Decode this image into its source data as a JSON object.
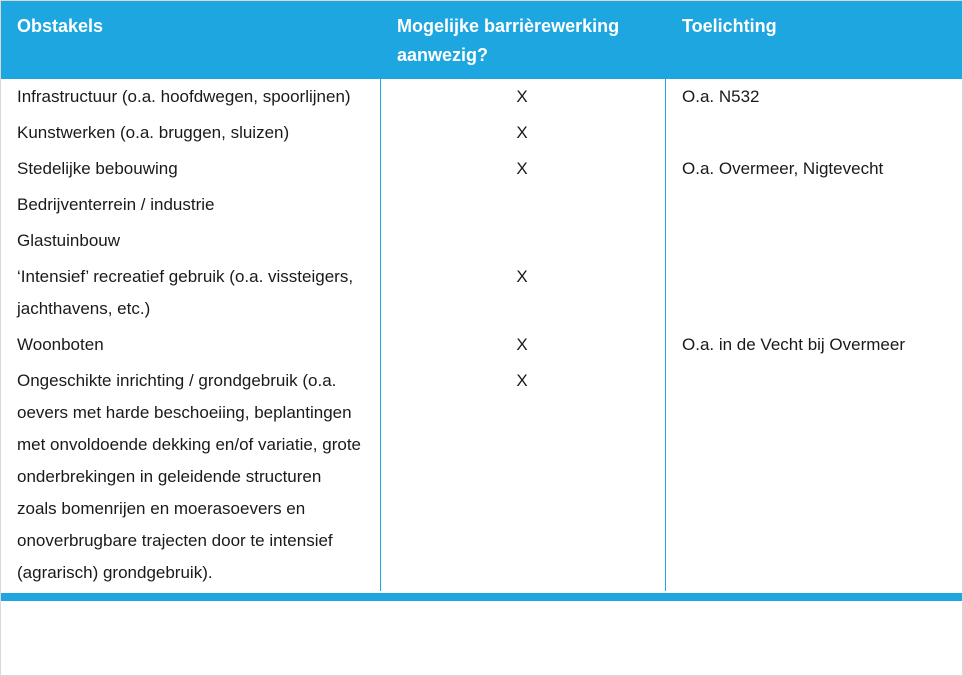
{
  "accent_color": "#1da6e0",
  "table": {
    "headers": [
      "Obstakels",
      "Mogelijke barrièrewerking aanwezig?",
      "Toelichting"
    ],
    "rows": [
      {
        "obstakel": "Infrastructuur (o.a. hoofdwegen, spoorlijnen)",
        "barriere": "X",
        "toelichting": "O.a. N532"
      },
      {
        "obstakel": "Kunstwerken (o.a. bruggen, sluizen)",
        "barriere": "X",
        "toelichting": ""
      },
      {
        "obstakel": "Stedelijke bebouwing",
        "barriere": "X",
        "toelichting": "O.a. Overmeer, Nigtevecht"
      },
      {
        "obstakel": "Bedrijventerrein / industrie",
        "barriere": "",
        "toelichting": ""
      },
      {
        "obstakel": "Glastuinbouw",
        "barriere": "",
        "toelichting": ""
      },
      {
        "obstakel": "‘Intensief’ recreatief gebruik (o.a. vissteigers, jachthavens, etc.)",
        "barriere": "X",
        "toelichting": ""
      },
      {
        "obstakel": "Woonboten",
        "barriere": "X",
        "toelichting": "O.a. in de Vecht bij Overmeer"
      },
      {
        "obstakel": "Ongeschikte inrichting / grondgebruik (o.a. oevers met harde beschoeiing, beplantingen met onvoldoende dekking en/of variatie, grote onderbrekingen in geleidende structuren zoals bomenrijen en moerasoevers en onoverbrugbare trajecten door te intensief (agrarisch) grondgebruik).",
        "barriere": "X",
        "toelichting": ""
      }
    ]
  }
}
